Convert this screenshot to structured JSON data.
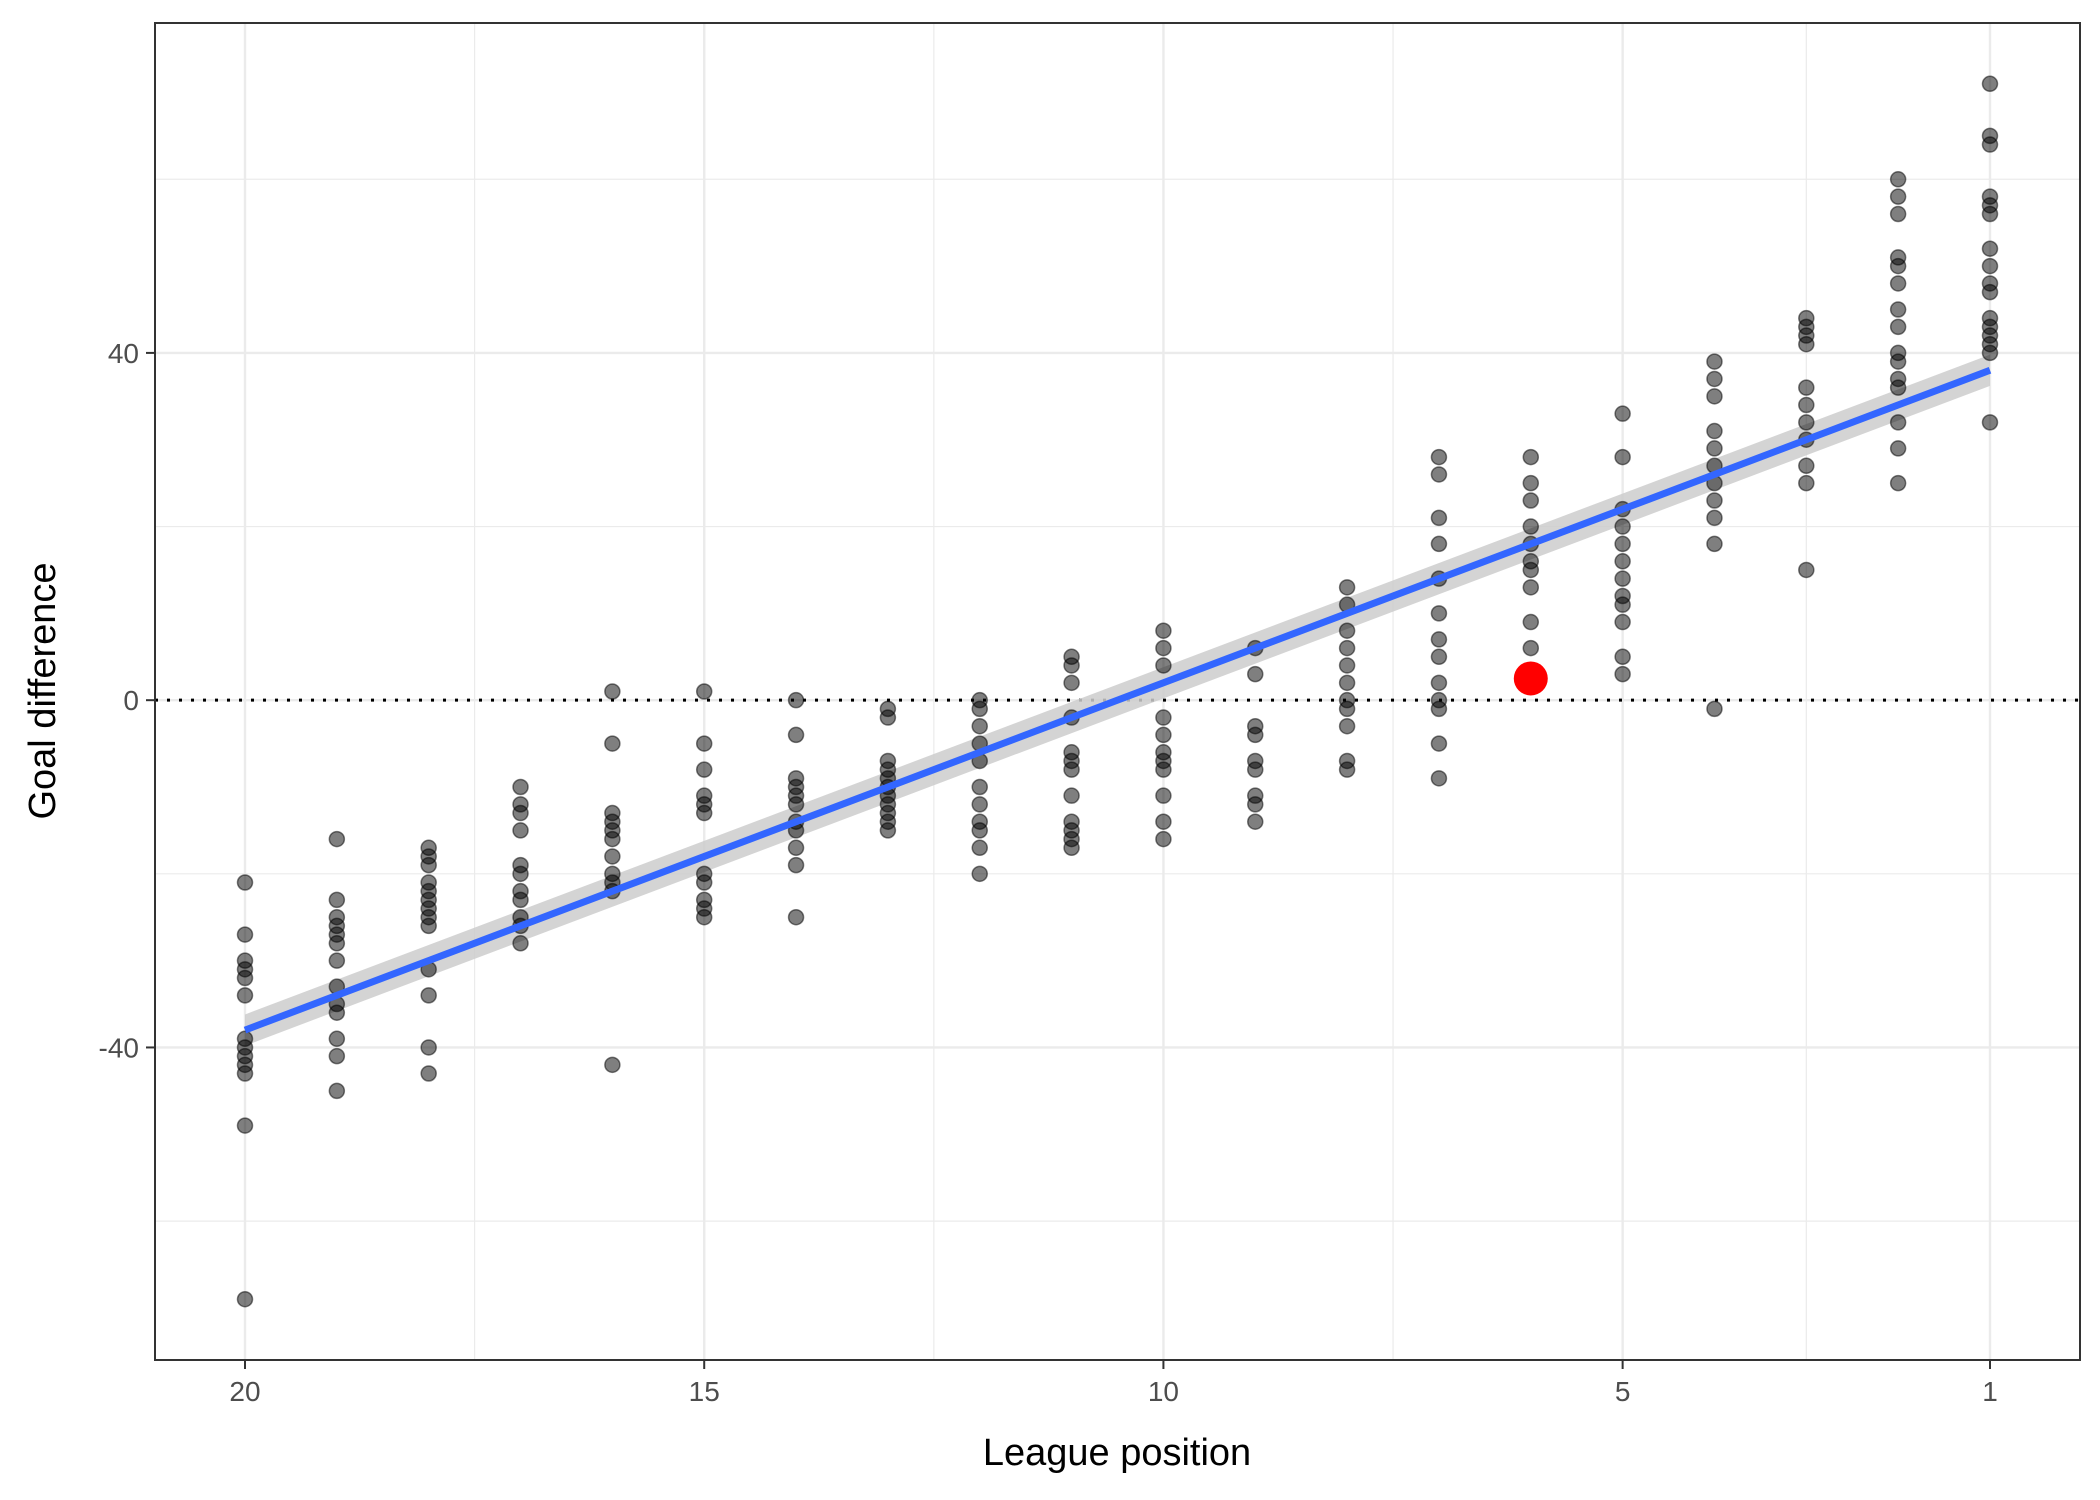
{
  "chart_data": {
    "type": "scatter",
    "title": "",
    "xlabel": "League position",
    "ylabel": "Goal difference",
    "x_reversed": true,
    "xlim": [
      20.98,
      0.02
    ],
    "ylim": [
      -76,
      78
    ],
    "grid": true,
    "x_ticks": [
      20,
      15,
      10,
      5,
      1
    ],
    "y_ticks": [
      -40,
      0,
      40
    ],
    "reference_line": {
      "y": 0,
      "style": "dotted"
    },
    "fit": {
      "method": "linear",
      "slope": -4.0,
      "intercept": 42.0,
      "se_band": 1.8
    },
    "highlight": {
      "x": 6,
      "y": 2.5,
      "color": "#ff0000"
    },
    "colors": {
      "point": "#000000",
      "fit": "#3366ff",
      "band": "#cccccc",
      "grid": "#ebebeb",
      "highlight": "#ff0000"
    },
    "points": [
      {
        "x": 20,
        "values": [
          -21,
          -27,
          -30,
          -31,
          -32,
          -34,
          -39,
          -40,
          -41,
          -42,
          -43,
          -49,
          -69
        ]
      },
      {
        "x": 19,
        "values": [
          -16,
          -23,
          -25,
          -26,
          -27,
          -28,
          -30,
          -33,
          -35,
          -36,
          -39,
          -41,
          -45
        ]
      },
      {
        "x": 18,
        "values": [
          -17,
          -18,
          -19,
          -21,
          -22,
          -23,
          -24,
          -25,
          -26,
          -31,
          -34,
          -40,
          -43
        ]
      },
      {
        "x": 17,
        "values": [
          -10,
          -12,
          -13,
          -15,
          -19,
          -20,
          -22,
          -23,
          -25,
          -26,
          -28
        ]
      },
      {
        "x": 16,
        "values": [
          1,
          -5,
          -13,
          -14,
          -15,
          -16,
          -18,
          -20,
          -21,
          -22,
          -42
        ]
      },
      {
        "x": 15,
        "values": [
          1,
          -5,
          -8,
          -11,
          -12,
          -13,
          -20,
          -21,
          -23,
          -24,
          -25
        ]
      },
      {
        "x": 14,
        "values": [
          0,
          -4,
          -9,
          -10,
          -11,
          -12,
          -14,
          -15,
          -17,
          -19,
          -25
        ]
      },
      {
        "x": 13,
        "values": [
          -1,
          -2,
          -7,
          -8,
          -9,
          -10,
          -11,
          -12,
          -13,
          -14,
          -15
        ]
      },
      {
        "x": 12,
        "values": [
          0,
          -1,
          -3,
          -5,
          -7,
          -10,
          -12,
          -14,
          -15,
          -17,
          -20
        ]
      },
      {
        "x": 11,
        "values": [
          5,
          4,
          2,
          -2,
          -6,
          -7,
          -8,
          -11,
          -14,
          -15,
          -16,
          -17
        ]
      },
      {
        "x": 10,
        "values": [
          8,
          6,
          4,
          -2,
          -4,
          -6,
          -7,
          -8,
          -11,
          -14,
          -16
        ]
      },
      {
        "x": 9,
        "values": [
          6,
          3,
          -3,
          -4,
          -7,
          -8,
          -11,
          -12,
          -14
        ]
      },
      {
        "x": 8,
        "values": [
          13,
          11,
          8,
          6,
          4,
          2,
          0,
          -1,
          -3,
          -7,
          -8
        ]
      },
      {
        "x": 7,
        "values": [
          28,
          26,
          21,
          18,
          14,
          10,
          7,
          5,
          2,
          0,
          -1,
          -5,
          -9
        ]
      },
      {
        "x": 6,
        "values": [
          28,
          25,
          23,
          20,
          18,
          16,
          15,
          13,
          9,
          6
        ]
      },
      {
        "x": 5,
        "values": [
          33,
          28,
          22,
          20,
          18,
          16,
          14,
          12,
          11,
          9,
          5,
          3
        ]
      },
      {
        "x": 4,
        "values": [
          39,
          37,
          35,
          31,
          29,
          27,
          25,
          23,
          21,
          18,
          -1
        ]
      },
      {
        "x": 3,
        "values": [
          44,
          43,
          42,
          41,
          36,
          34,
          32,
          30,
          27,
          25,
          15
        ]
      },
      {
        "x": 2,
        "values": [
          60,
          58,
          56,
          51,
          50,
          48,
          45,
          43,
          40,
          39,
          37,
          36,
          32,
          29,
          25
        ]
      },
      {
        "x": 1,
        "values": [
          71,
          65,
          64,
          58,
          57,
          56,
          52,
          50,
          48,
          47,
          44,
          43,
          42,
          41,
          40,
          32
        ]
      }
    ]
  }
}
